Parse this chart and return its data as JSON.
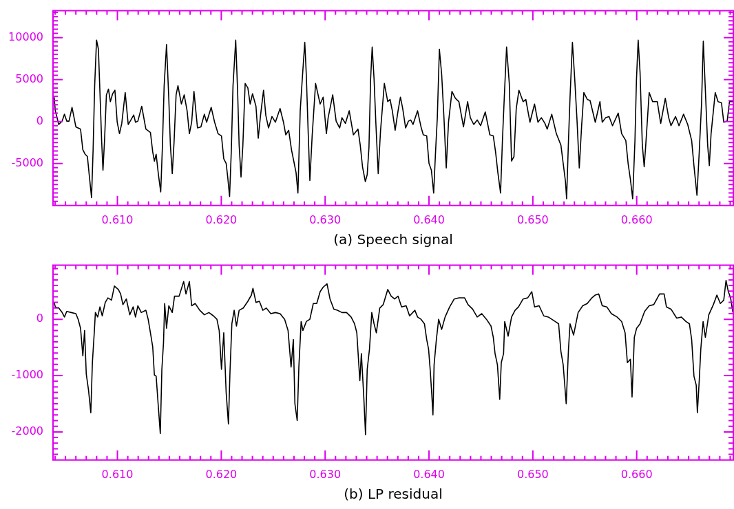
{
  "chart_data": [
    {
      "type": "line",
      "xlabel": "(a) Speech signal",
      "xlim": [
        0.6038,
        0.6693
      ],
      "ylim": [
        -10000,
        13200
      ],
      "xticks": [
        {
          "value": 0.604,
          "label": null
        },
        {
          "value": 0.605,
          "label": null
        },
        {
          "value": 0.606,
          "label": null
        },
        {
          "value": 0.607,
          "label": null
        },
        {
          "value": 0.608,
          "label": null
        },
        {
          "value": 0.609,
          "label": null
        },
        {
          "value": 0.61,
          "label": "0.610"
        },
        {
          "value": 0.611,
          "label": null
        },
        {
          "value": 0.612,
          "label": null
        },
        {
          "value": 0.613,
          "label": null
        },
        {
          "value": 0.614,
          "label": null
        },
        {
          "value": 0.615,
          "label": null
        },
        {
          "value": 0.616,
          "label": null
        },
        {
          "value": 0.617,
          "label": null
        },
        {
          "value": 0.618,
          "label": null
        },
        {
          "value": 0.619,
          "label": null
        },
        {
          "value": 0.62,
          "label": "0.620"
        },
        {
          "value": 0.621,
          "label": null
        },
        {
          "value": 0.622,
          "label": null
        },
        {
          "value": 0.623,
          "label": null
        },
        {
          "value": 0.624,
          "label": null
        },
        {
          "value": 0.625,
          "label": null
        },
        {
          "value": 0.626,
          "label": null
        },
        {
          "value": 0.627,
          "label": null
        },
        {
          "value": 0.628,
          "label": null
        },
        {
          "value": 0.629,
          "label": null
        },
        {
          "value": 0.63,
          "label": "0.630"
        },
        {
          "value": 0.631,
          "label": null
        },
        {
          "value": 0.632,
          "label": null
        },
        {
          "value": 0.633,
          "label": null
        },
        {
          "value": 0.634,
          "label": null
        },
        {
          "value": 0.635,
          "label": null
        },
        {
          "value": 0.636,
          "label": null
        },
        {
          "value": 0.637,
          "label": null
        },
        {
          "value": 0.638,
          "label": null
        },
        {
          "value": 0.639,
          "label": null
        },
        {
          "value": 0.64,
          "label": "0.640"
        },
        {
          "value": 0.641,
          "label": null
        },
        {
          "value": 0.642,
          "label": null
        },
        {
          "value": 0.643,
          "label": null
        },
        {
          "value": 0.644,
          "label": null
        },
        {
          "value": 0.645,
          "label": null
        },
        {
          "value": 0.646,
          "label": null
        },
        {
          "value": 0.647,
          "label": null
        },
        {
          "value": 0.648,
          "label": null
        },
        {
          "value": 0.649,
          "label": null
        },
        {
          "value": 0.65,
          "label": "0.650"
        },
        {
          "value": 0.651,
          "label": null
        },
        {
          "value": 0.652,
          "label": null
        },
        {
          "value": 0.653,
          "label": null
        },
        {
          "value": 0.654,
          "label": null
        },
        {
          "value": 0.655,
          "label": null
        },
        {
          "value": 0.656,
          "label": null
        },
        {
          "value": 0.657,
          "label": null
        },
        {
          "value": 0.658,
          "label": null
        },
        {
          "value": 0.659,
          "label": null
        },
        {
          "value": 0.66,
          "label": "0.660"
        },
        {
          "value": 0.661,
          "label": null
        },
        {
          "value": 0.662,
          "label": null
        },
        {
          "value": 0.663,
          "label": null
        },
        {
          "value": 0.664,
          "label": null
        },
        {
          "value": 0.665,
          "label": null
        },
        {
          "value": 0.666,
          "label": null
        },
        {
          "value": 0.667,
          "label": null
        },
        {
          "value": 0.668,
          "label": null
        },
        {
          "value": 0.669,
          "label": null
        }
      ],
      "yticks": [
        {
          "value": -9500,
          "label": null
        },
        {
          "value": -9000,
          "label": null
        },
        {
          "value": -8500,
          "label": null
        },
        {
          "value": -8000,
          "label": null
        },
        {
          "value": -7500,
          "label": null
        },
        {
          "value": -7000,
          "label": null
        },
        {
          "value": -6500,
          "label": null
        },
        {
          "value": -6000,
          "label": null
        },
        {
          "value": -5500,
          "label": null
        },
        -5000,
        {
          "value": -4500,
          "label": null
        },
        {
          "value": -4000,
          "label": null
        },
        {
          "value": -3500,
          "label": null
        },
        {
          "value": -3000,
          "label": null
        },
        {
          "value": -2500,
          "label": null
        },
        {
          "value": -2000,
          "label": null
        },
        {
          "value": -1500,
          "label": null
        },
        {
          "value": -1000,
          "label": null
        },
        {
          "value": -500,
          "label": null
        },
        0,
        {
          "value": 500,
          "label": null
        },
        {
          "value": 1000,
          "label": null
        },
        {
          "value": 1500,
          "label": null
        },
        {
          "value": 2000,
          "label": null
        },
        {
          "value": 2500,
          "label": null
        },
        {
          "value": 3000,
          "label": null
        },
        {
          "value": 3500,
          "label": null
        },
        {
          "value": 4000,
          "label": null
        },
        {
          "value": 4500,
          "label": null
        },
        5000,
        {
          "value": 5500,
          "label": null
        },
        {
          "value": 6000,
          "label": null
        },
        {
          "value": 6500,
          "label": null
        },
        {
          "value": 7000,
          "label": null
        },
        {
          "value": 7500,
          "label": null
        },
        {
          "value": 8000,
          "label": null
        },
        {
          "value": 8500,
          "label": null
        },
        {
          "value": 9000,
          "label": null
        },
        {
          "value": 9500,
          "label": null
        },
        10000,
        {
          "value": 10500,
          "label": null
        },
        {
          "value": 11000,
          "label": null
        },
        {
          "value": 11500,
          "label": null
        },
        {
          "value": 12000,
          "label": null
        },
        {
          "value": 12500,
          "label": null
        },
        {
          "value": 13000,
          "label": null
        }
      ],
      "x": [
        0.60391,
        0.60402,
        0.60435,
        0.60468,
        0.6049,
        0.60512,
        0.60534,
        0.60563,
        0.606,
        0.60645,
        0.60667,
        0.60689,
        0.60711,
        0.60733,
        0.60751,
        0.60766,
        0.60781,
        0.60799,
        0.60817,
        0.60832,
        0.60848,
        0.60861,
        0.60876,
        0.60894,
        0.60914,
        0.60932,
        0.60954,
        0.60976,
        0.60998,
        0.6102,
        0.61042,
        0.61075,
        0.61104,
        0.6113,
        0.61157,
        0.61174,
        0.61197,
        0.61234,
        0.61274,
        0.61318,
        0.6134,
        0.61356,
        0.61373,
        0.61395,
        0.61417,
        0.61433,
        0.6145,
        0.61473,
        0.61495,
        0.6151,
        0.61528,
        0.61545,
        0.61565,
        0.61583,
        0.61616,
        0.61643,
        0.61671,
        0.61693,
        0.61715,
        0.61737,
        0.61771,
        0.61804,
        0.61837,
        0.61859,
        0.61903,
        0.61936,
        0.61969,
        0.62002,
        0.62024,
        0.62047,
        0.62062,
        0.6208,
        0.62097,
        0.62113,
        0.62139,
        0.62157,
        0.62172,
        0.6219,
        0.62208,
        0.6223,
        0.62256,
        0.62278,
        0.62301,
        0.62334,
        0.62356,
        0.62378,
        0.62407,
        0.62429,
        0.62455,
        0.62488,
        0.62521,
        0.62566,
        0.62599,
        0.62621,
        0.62649,
        0.62676,
        0.62698,
        0.6272,
        0.62738,
        0.6276,
        0.6278,
        0.62804,
        0.62819,
        0.62835,
        0.62853,
        0.62875,
        0.62908,
        0.62952,
        0.62981,
        0.63012,
        0.63029,
        0.63073,
        0.63106,
        0.6314,
        0.63162,
        0.63195,
        0.63232,
        0.63272,
        0.63316,
        0.63338,
        0.6336,
        0.63387,
        0.63405,
        0.63422,
        0.63438,
        0.63453,
        0.63471,
        0.63488,
        0.63511,
        0.63533,
        0.6357,
        0.63603,
        0.63625,
        0.63647,
        0.63674,
        0.63702,
        0.63725,
        0.63747,
        0.63775,
        0.63802,
        0.63824,
        0.63846,
        0.6389,
        0.63923,
        0.63945,
        0.63978,
        0.64,
        0.64023,
        0.64045,
        0.64062,
        0.6408,
        0.641,
        0.64122,
        0.64144,
        0.64166,
        0.64188,
        0.64221,
        0.64254,
        0.64288,
        0.64332,
        0.64372,
        0.64398,
        0.64431,
        0.64464,
        0.64497,
        0.64542,
        0.64586,
        0.64619,
        0.64641,
        0.64663,
        0.64689,
        0.64707,
        0.64725,
        0.64747,
        0.64773,
        0.64795,
        0.64818,
        0.6484,
        0.64866,
        0.64906,
        0.64932,
        0.64972,
        0.65016,
        0.65049,
        0.65082,
        0.65116,
        0.65138,
        0.65182,
        0.65226,
        0.6527,
        0.65292,
        0.65314,
        0.65325,
        0.65343,
        0.65358,
        0.65381,
        0.65403,
        0.65425,
        0.65447,
        0.65469,
        0.65491,
        0.65524,
        0.65551,
        0.65601,
        0.65646,
        0.65668,
        0.65701,
        0.65734,
        0.65767,
        0.65822,
        0.65855,
        0.65895,
        0.65917,
        0.65939,
        0.65961,
        0.65983,
        0.65997,
        0.66014,
        0.66032,
        0.66054,
        0.66072,
        0.66087,
        0.6612,
        0.66153,
        0.66198,
        0.66231,
        0.66275,
        0.66308,
        0.6633,
        0.66374,
        0.66407,
        0.66451,
        0.66491,
        0.66529,
        0.66551,
        0.6658,
        0.66602,
        0.66624,
        0.66641,
        0.66661,
        0.66683,
        0.66699,
        0.66716,
        0.66756,
        0.66783,
        0.66816,
        0.66838,
        0.66871,
        0.66893,
        0.66926
      ],
      "series": [
        {
          "color": "#000000",
          "values": [
            2910,
            1280,
            -350,
            50,
            870,
            50,
            50,
            1690,
            -630,
            -900,
            -3350,
            -3890,
            -4160,
            -6880,
            -9060,
            -3350,
            4270,
            9710,
            8620,
            3450,
            -2260,
            -5790,
            -2260,
            3180,
            3860,
            2370,
            3320,
            3730,
            -80,
            -1440,
            -220,
            3450,
            -350,
            190,
            790,
            -80,
            50,
            1820,
            -900,
            -1310,
            -3620,
            -4710,
            -3890,
            -6340,
            -8380,
            -3070,
            4270,
            9170,
            2640,
            -2800,
            -6200,
            -2530,
            3180,
            4270,
            2090,
            3180,
            1280,
            -1440,
            -80,
            3590,
            -760,
            -630,
            870,
            -80,
            1690,
            -80,
            -1440,
            -1710,
            -4430,
            -4980,
            -6610,
            -8920,
            -3350,
            4270,
            9710,
            3730,
            -2800,
            -6610,
            -2800,
            4540,
            4000,
            2090,
            3320,
            1820,
            -1990,
            730,
            3730,
            730,
            -760,
            600,
            -80,
            1550,
            -80,
            -1580,
            -1030,
            -3350,
            -4710,
            -6070,
            -8510,
            1280,
            5090,
            9440,
            5490,
            -630,
            -7020,
            -1710,
            4540,
            2090,
            2910,
            -1440,
            460,
            3180,
            50,
            -760,
            460,
            -220,
            1280,
            -1580,
            -900,
            -2800,
            -5390,
            -7150,
            -6340,
            -3070,
            5090,
            8890,
            5090,
            -80,
            -6200,
            -1170,
            4540,
            2370,
            2640,
            1280,
            -1030,
            1280,
            2910,
            1550,
            -760,
            50,
            190,
            -350,
            1280,
            -630,
            -1580,
            -1710,
            -4980,
            -5790,
            -8510,
            -3890,
            460,
            8620,
            5630,
            460,
            -5520,
            -80,
            3590,
            2770,
            2370,
            -630,
            2370,
            460,
            -350,
            190,
            -490,
            1140,
            -1580,
            -1710,
            -3620,
            -6070,
            -8510,
            -2260,
            2910,
            8890,
            4540,
            -4710,
            -4160,
            1550,
            3730,
            2370,
            2640,
            -80,
            2090,
            -80,
            460,
            -220,
            -900,
            870,
            -1440,
            -2800,
            -4980,
            -7150,
            -9190,
            -2260,
            2910,
            9440,
            5090,
            190,
            -5520,
            -630,
            3450,
            2640,
            2500,
            -80,
            2370,
            -80,
            460,
            600,
            -490,
            1010,
            -1440,
            -2260,
            -4980,
            -6880,
            -9190,
            -2260,
            4810,
            9710,
            5900,
            -2800,
            -5390,
            -2800,
            3450,
            2370,
            2370,
            -220,
            2770,
            460,
            -490,
            600,
            -490,
            870,
            -350,
            -2260,
            -5250,
            -8790,
            -3620,
            2090,
            9570,
            3730,
            -2800,
            -5250,
            -1440,
            3450,
            2370,
            2230,
            -80,
            50,
            2370,
            2370
          ]
        }
      ]
    },
    {
      "type": "line",
      "xlabel": "(b) LP residual",
      "xlim": [
        0.6038,
        0.6693
      ],
      "ylim": [
        -2500,
        960
      ],
      "xticks": [
        {
          "value": 0.604,
          "label": null
        },
        {
          "value": 0.605,
          "label": null
        },
        {
          "value": 0.606,
          "label": null
        },
        {
          "value": 0.607,
          "label": null
        },
        {
          "value": 0.608,
          "label": null
        },
        {
          "value": 0.609,
          "label": null
        },
        {
          "value": 0.61,
          "label": "0.610"
        },
        {
          "value": 0.611,
          "label": null
        },
        {
          "value": 0.612,
          "label": null
        },
        {
          "value": 0.613,
          "label": null
        },
        {
          "value": 0.614,
          "label": null
        },
        {
          "value": 0.615,
          "label": null
        },
        {
          "value": 0.616,
          "label": null
        },
        {
          "value": 0.617,
          "label": null
        },
        {
          "value": 0.618,
          "label": null
        },
        {
          "value": 0.619,
          "label": null
        },
        {
          "value": 0.62,
          "label": "0.620"
        },
        {
          "value": 0.621,
          "label": null
        },
        {
          "value": 0.622,
          "label": null
        },
        {
          "value": 0.623,
          "label": null
        },
        {
          "value": 0.624,
          "label": null
        },
        {
          "value": 0.625,
          "label": null
        },
        {
          "value": 0.626,
          "label": null
        },
        {
          "value": 0.627,
          "label": null
        },
        {
          "value": 0.628,
          "label": null
        },
        {
          "value": 0.629,
          "label": null
        },
        {
          "value": 0.63,
          "label": "0.630"
        },
        {
          "value": 0.631,
          "label": null
        },
        {
          "value": 0.632,
          "label": null
        },
        {
          "value": 0.633,
          "label": null
        },
        {
          "value": 0.634,
          "label": null
        },
        {
          "value": 0.635,
          "label": null
        },
        {
          "value": 0.636,
          "label": null
        },
        {
          "value": 0.637,
          "label": null
        },
        {
          "value": 0.638,
          "label": null
        },
        {
          "value": 0.639,
          "label": null
        },
        {
          "value": 0.64,
          "label": "0.640"
        },
        {
          "value": 0.641,
          "label": null
        },
        {
          "value": 0.642,
          "label": null
        },
        {
          "value": 0.643,
          "label": null
        },
        {
          "value": 0.644,
          "label": null
        },
        {
          "value": 0.645,
          "label": null
        },
        {
          "value": 0.646,
          "label": null
        },
        {
          "value": 0.647,
          "label": null
        },
        {
          "value": 0.648,
          "label": null
        },
        {
          "value": 0.649,
          "label": null
        },
        {
          "value": 0.65,
          "label": "0.650"
        },
        {
          "value": 0.651,
          "label": null
        },
        {
          "value": 0.652,
          "label": null
        },
        {
          "value": 0.653,
          "label": null
        },
        {
          "value": 0.654,
          "label": null
        },
        {
          "value": 0.655,
          "label": null
        },
        {
          "value": 0.656,
          "label": null
        },
        {
          "value": 0.657,
          "label": null
        },
        {
          "value": 0.658,
          "label": null
        },
        {
          "value": 0.659,
          "label": null
        },
        {
          "value": 0.66,
          "label": "0.660"
        },
        {
          "value": 0.661,
          "label": null
        },
        {
          "value": 0.662,
          "label": null
        },
        {
          "value": 0.663,
          "label": null
        },
        {
          "value": 0.664,
          "label": null
        },
        {
          "value": 0.665,
          "label": null
        },
        {
          "value": 0.666,
          "label": null
        },
        {
          "value": 0.667,
          "label": null
        },
        {
          "value": 0.668,
          "label": null
        },
        {
          "value": 0.669,
          "label": null
        }
      ],
      "yticks": [
        {
          "value": -2400,
          "label": null
        },
        {
          "value": -2300,
          "label": null
        },
        {
          "value": -2200,
          "label": null
        },
        {
          "value": -2100,
          "label": null
        },
        -2000,
        {
          "value": -1900,
          "label": null
        },
        {
          "value": -1800,
          "label": null
        },
        {
          "value": -1700,
          "label": null
        },
        {
          "value": -1600,
          "label": null
        },
        {
          "value": -1500,
          "label": null
        },
        {
          "value": -1400,
          "label": null
        },
        {
          "value": -1300,
          "label": null
        },
        {
          "value": -1200,
          "label": null
        },
        {
          "value": -1100,
          "label": null
        },
        -1000,
        {
          "value": -900,
          "label": null
        },
        {
          "value": -800,
          "label": null
        },
        {
          "value": -700,
          "label": null
        },
        {
          "value": -600,
          "label": null
        },
        {
          "value": -500,
          "label": null
        },
        {
          "value": -400,
          "label": null
        },
        {
          "value": -300,
          "label": null
        },
        {
          "value": -200,
          "label": null
        },
        {
          "value": -100,
          "label": null
        },
        0,
        {
          "value": 100,
          "label": null
        },
        {
          "value": 200,
          "label": null
        },
        {
          "value": 300,
          "label": null
        },
        {
          "value": 400,
          "label": null
        },
        {
          "value": 500,
          "label": null
        },
        {
          "value": 600,
          "label": null
        },
        {
          "value": 700,
          "label": null
        },
        {
          "value": 800,
          "label": null
        },
        {
          "value": 900,
          "label": null
        }
      ],
      "x": [
        0.60391,
        0.60402,
        0.60435,
        0.60468,
        0.6049,
        0.60512,
        0.60556,
        0.606,
        0.60622,
        0.60645,
        0.60667,
        0.60684,
        0.607,
        0.60722,
        0.60744,
        0.60759,
        0.60777,
        0.60788,
        0.6081,
        0.60832,
        0.60854,
        0.60883,
        0.60909,
        0.60943,
        0.60971,
        0.61009,
        0.61031,
        0.61053,
        0.61086,
        0.61119,
        0.61152,
        0.61174,
        0.61197,
        0.6123,
        0.61274,
        0.61296,
        0.61318,
        0.6134,
        0.61356,
        0.61373,
        0.61395,
        0.61413,
        0.61428,
        0.61444,
        0.61455,
        0.61473,
        0.61495,
        0.61528,
        0.6155,
        0.61594,
        0.61638,
        0.6166,
        0.61693,
        0.61715,
        0.61749,
        0.61793,
        0.61837,
        0.61881,
        0.61925,
        0.61958,
        0.6198,
        0.62002,
        0.62024,
        0.62047,
        0.62069,
        0.62084,
        0.62102,
        0.62124,
        0.62146,
        0.62172,
        0.62212,
        0.62256,
        0.6229,
        0.62305,
        0.62334,
        0.62367,
        0.624,
        0.62433,
        0.62477,
        0.62521,
        0.62566,
        0.6261,
        0.62643,
        0.62672,
        0.62694,
        0.62709,
        0.62731,
        0.62747,
        0.62769,
        0.62786,
        0.62819,
        0.62853,
        0.62886,
        0.62919,
        0.62952,
        0.62981,
        0.63018,
        0.63047,
        0.63084,
        0.63118,
        0.63162,
        0.63206,
        0.6325,
        0.63283,
        0.63305,
        0.63334,
        0.63349,
        0.63371,
        0.63389,
        0.63405,
        0.63427,
        0.63449,
        0.63471,
        0.63493,
        0.63526,
        0.63559,
        0.63603,
        0.63636,
        0.63669,
        0.63702,
        0.63736,
        0.6378,
        0.63813,
        0.63864,
        0.6389,
        0.63923,
        0.63956,
        0.63978,
        0.63996,
        0.64012,
        0.64027,
        0.64038,
        0.64049,
        0.64071,
        0.64093,
        0.64122,
        0.64155,
        0.64199,
        0.64243,
        0.64288,
        0.64343,
        0.64376,
        0.6442,
        0.64464,
        0.64508,
        0.64553,
        0.64597,
        0.64619,
        0.64636,
        0.64659,
        0.64681,
        0.64696,
        0.64718,
        0.64729,
        0.64762,
        0.64795,
        0.64829,
        0.64862,
        0.64906,
        0.6495,
        0.6499,
        0.65016,
        0.6506,
        0.65105,
        0.65149,
        0.65215,
        0.65248,
        0.6527,
        0.65292,
        0.65321,
        0.65343,
        0.65358,
        0.65392,
        0.65436,
        0.6548,
        0.65524,
        0.65568,
        0.65601,
        0.65634,
        0.65668,
        0.65712,
        0.65756,
        0.65811,
        0.65855,
        0.65888,
        0.6591,
        0.65939,
        0.65955,
        0.65977,
        0.65999,
        0.66032,
        0.66076,
        0.6612,
        0.66164,
        0.6622,
        0.66264,
        0.66286,
        0.6633,
        0.66385,
        0.66429,
        0.66474,
        0.66507,
        0.66529,
        0.66551,
        0.66573,
        0.66584,
        0.66602,
        0.66617,
        0.66639,
        0.66661,
        0.66694,
        0.66738,
        0.66772,
        0.66805,
        0.66838,
        0.6686,
        0.66882,
        0.66904,
        0.66926
      ],
      "series": [
        {
          "color": "#000000",
          "values": [
            300,
            220,
            200,
            120,
            40,
            140,
            120,
            100,
            0,
            -160,
            -650,
            -200,
            -970,
            -1260,
            -1660,
            -770,
            -240,
            120,
            40,
            220,
            60,
            300,
            380,
            340,
            590,
            530,
            450,
            260,
            360,
            80,
            220,
            40,
            240,
            120,
            160,
            0,
            -240,
            -490,
            -990,
            -1010,
            -1580,
            -2030,
            -890,
            -410,
            280,
            -160,
            240,
            120,
            410,
            410,
            670,
            450,
            670,
            240,
            280,
            160,
            80,
            120,
            60,
            0,
            -200,
            -890,
            -240,
            -1300,
            -1860,
            -930,
            -80,
            160,
            -120,
            160,
            200,
            320,
            430,
            550,
            300,
            320,
            160,
            200,
            100,
            120,
            100,
            0,
            -200,
            -850,
            -360,
            -1500,
            -1800,
            -850,
            -40,
            -200,
            -40,
            0,
            280,
            280,
            490,
            570,
            630,
            360,
            180,
            160,
            120,
            120,
            40,
            -80,
            -240,
            -1090,
            -610,
            -1340,
            -2050,
            -890,
            -530,
            120,
            -80,
            -240,
            200,
            260,
            530,
            410,
            360,
            410,
            220,
            240,
            60,
            160,
            40,
            0,
            -80,
            -360,
            -530,
            -910,
            -1340,
            -1700,
            -810,
            -360,
            0,
            -180,
            40,
            220,
            360,
            380,
            380,
            260,
            180,
            40,
            100,
            0,
            -120,
            -320,
            -610,
            -810,
            -1420,
            -770,
            -610,
            -40,
            -300,
            40,
            160,
            220,
            360,
            380,
            490,
            220,
            240,
            60,
            40,
            -40,
            -80,
            -570,
            -810,
            -1500,
            -530,
            -80,
            -280,
            120,
            240,
            280,
            380,
            430,
            450,
            240,
            220,
            100,
            40,
            -40,
            -240,
            -770,
            -710,
            -1380,
            -320,
            -160,
            -80,
            140,
            240,
            260,
            450,
            450,
            220,
            180,
            20,
            40,
            -40,
            -80,
            -360,
            -1010,
            -1170,
            -1660,
            -1090,
            -530,
            -40,
            -320,
            80,
            260,
            430,
            280,
            340,
            690,
            490,
            380,
            120
          ]
        }
      ]
    }
  ]
}
